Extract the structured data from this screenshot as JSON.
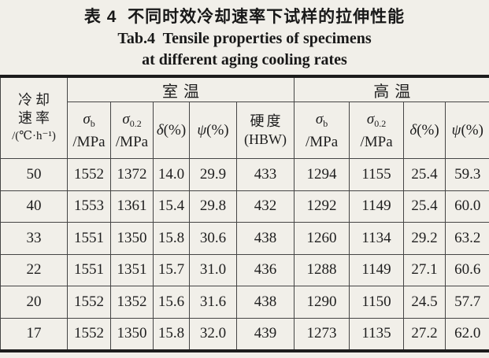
{
  "title": {
    "zh": "表 4  不同时效冷却速率下试样的拉伸性能",
    "en_line1": "Tab.4  Tensile properties of specimens",
    "en_line2": "at different aging cooling rates"
  },
  "colors": {
    "paper": "#f1efe9",
    "ink": "#1e1e1e",
    "thick_rule": "#1c1c1c",
    "thin_rule": "#454545"
  },
  "table": {
    "col_header": {
      "line1": "冷却",
      "line2": "速率",
      "line3": "/(℃·h⁻¹)"
    },
    "groups": [
      {
        "label": "室温"
      },
      {
        "label": "高温"
      }
    ],
    "subheaders": [
      {
        "symbol": "σ",
        "subscript": "b",
        "unit": "/MPa"
      },
      {
        "symbol": "σ",
        "subscript": "0.2",
        "unit": "/MPa"
      },
      {
        "symbol": "δ",
        "suffix": "(%)"
      },
      {
        "symbol": "ψ",
        "suffix": "(%)"
      },
      {
        "line1": "硬度",
        "line2": "(HBW)"
      },
      {
        "symbol": "σ",
        "subscript": "b",
        "unit": "/MPa"
      },
      {
        "symbol": "σ",
        "subscript": "0.2",
        "unit": "/MPa"
      },
      {
        "symbol": "δ",
        "suffix": "(%)"
      },
      {
        "symbol": "ψ",
        "suffix": "(%)"
      }
    ],
    "rows": [
      [
        "50",
        "1552",
        "1372",
        "14.0",
        "29.9",
        "433",
        "1294",
        "1155",
        "25.4",
        "59.3"
      ],
      [
        "40",
        "1553",
        "1361",
        "15.4",
        "29.8",
        "432",
        "1292",
        "1149",
        "25.4",
        "60.0"
      ],
      [
        "33",
        "1551",
        "1350",
        "15.8",
        "30.6",
        "438",
        "1260",
        "1134",
        "29.2",
        "63.2"
      ],
      [
        "22",
        "1551",
        "1351",
        "15.7",
        "31.0",
        "436",
        "1288",
        "1149",
        "27.1",
        "60.6"
      ],
      [
        "20",
        "1552",
        "1352",
        "15.6",
        "31.6",
        "438",
        "1290",
        "1150",
        "24.5",
        "57.7"
      ],
      [
        "17",
        "1552",
        "1350",
        "15.8",
        "32.0",
        "439",
        "1273",
        "1135",
        "27.2",
        "62.0"
      ]
    ]
  }
}
